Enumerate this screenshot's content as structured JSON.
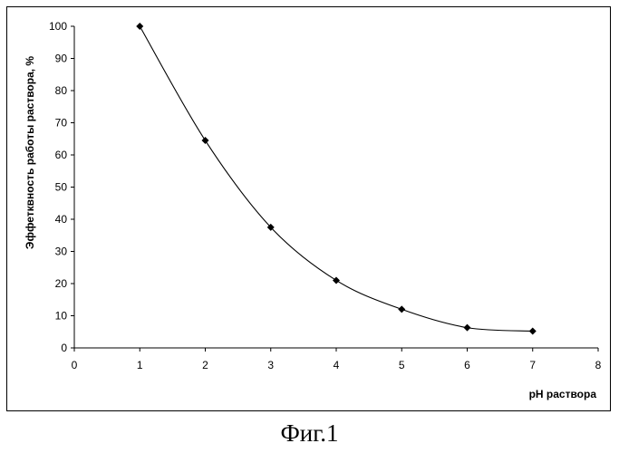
{
  "caption": "Фиг.1",
  "chart_data": {
    "type": "scatter",
    "xlabel": "pH раствора",
    "ylabel": "Эффетквность работы раствора, %",
    "xlim": [
      0,
      8
    ],
    "ylim": [
      0,
      100
    ],
    "x_ticks": [
      0,
      1,
      2,
      3,
      4,
      5,
      6,
      7,
      8
    ],
    "y_ticks": [
      0,
      10,
      20,
      30,
      40,
      50,
      60,
      70,
      80,
      90,
      100
    ],
    "grid": false,
    "legend": "none",
    "smoothed_line": true,
    "marker": "diamond",
    "series": [
      {
        "x": [
          1,
          2,
          3,
          4,
          5,
          6,
          7
        ],
        "y": [
          100,
          64.5,
          37.5,
          21,
          12,
          6.3,
          5.2
        ]
      }
    ]
  }
}
